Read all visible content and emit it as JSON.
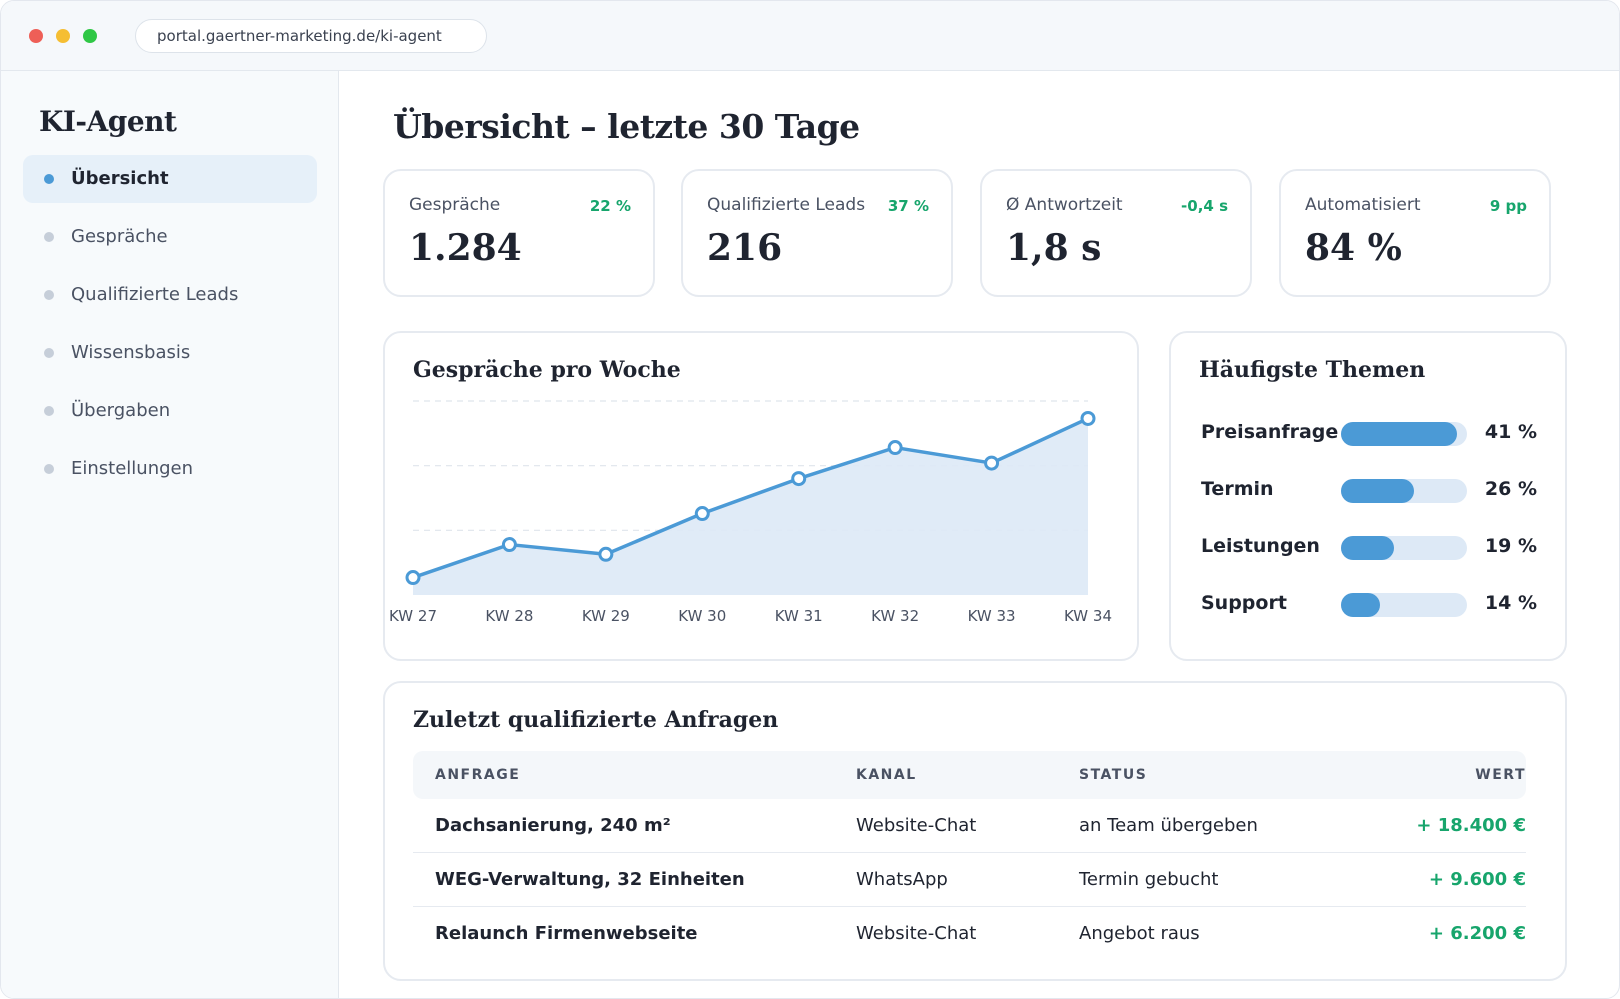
{
  "browser": {
    "url": "portal.gaertner-marketing.de/ki-agent"
  },
  "sidebar": {
    "brand": "KI-Agent",
    "items": [
      {
        "label": "Übersicht",
        "active": true
      },
      {
        "label": "Gespräche",
        "active": false
      },
      {
        "label": "Qualifizierte Leads",
        "active": false
      },
      {
        "label": "Wissensbasis",
        "active": false
      },
      {
        "label": "Übergaben",
        "active": false
      },
      {
        "label": "Einstellungen",
        "active": false
      }
    ]
  },
  "main": {
    "title": "Übersicht – letzte 30 Tage",
    "kpis": [
      {
        "label": "Gespräche",
        "delta": "22 %",
        "value": "1.284"
      },
      {
        "label": "Qualifizierte Leads",
        "delta": "37 %",
        "value": "216"
      },
      {
        "label": "Ø Antwortzeit",
        "delta": "-0,4 s",
        "value": "1,8 s"
      },
      {
        "label": "Automatisiert",
        "delta": "9 pp",
        "value": "84 %"
      }
    ],
    "weekly_chart": {
      "title": "Gespräche pro Woche"
    },
    "topics": {
      "title": "Häufigste Themen",
      "items": [
        {
          "label": "Preisanfrage",
          "pct": "41 %",
          "fill": 0.92
        },
        {
          "label": "Termin",
          "pct": "26 %",
          "fill": 0.58
        },
        {
          "label": "Leistungen",
          "pct": "19 %",
          "fill": 0.42
        },
        {
          "label": "Support",
          "pct": "14 %",
          "fill": 0.31
        }
      ]
    },
    "table": {
      "title": "Zuletzt qualifizierte Anfragen",
      "columns": [
        "ANFRAGE",
        "KANAL",
        "STATUS",
        "WERT"
      ],
      "rows": [
        {
          "anfrage": "Dachsanierung, 240 m²",
          "kanal": "Website-Chat",
          "status": "an Team übergeben",
          "wert": "+ 18.400 €"
        },
        {
          "anfrage": "WEG-Verwaltung, 32 Einheiten",
          "kanal": "WhatsApp",
          "status": "Termin gebucht",
          "wert": "+ 9.600 €"
        },
        {
          "anfrage": "Relaunch Firmenwebseite",
          "kanal": "Website-Chat",
          "status": "Angebot raus",
          "wert": "+ 6.200 €"
        }
      ]
    }
  },
  "colors": {
    "accent": "#4b9ad6",
    "area": "#dde9f6",
    "positive": "#17a56c"
  },
  "chart_data": {
    "type": "area",
    "title": "Gespräche pro Woche",
    "categories": [
      "KW 27",
      "KW 28",
      "KW 29",
      "KW 30",
      "KW 31",
      "KW 32",
      "KW 33",
      "KW 34"
    ],
    "values": [
      0.09,
      0.26,
      0.21,
      0.42,
      0.6,
      0.76,
      0.68,
      0.91
    ],
    "ylim": [
      0,
      1
    ],
    "grid": true,
    "legend": "none"
  }
}
